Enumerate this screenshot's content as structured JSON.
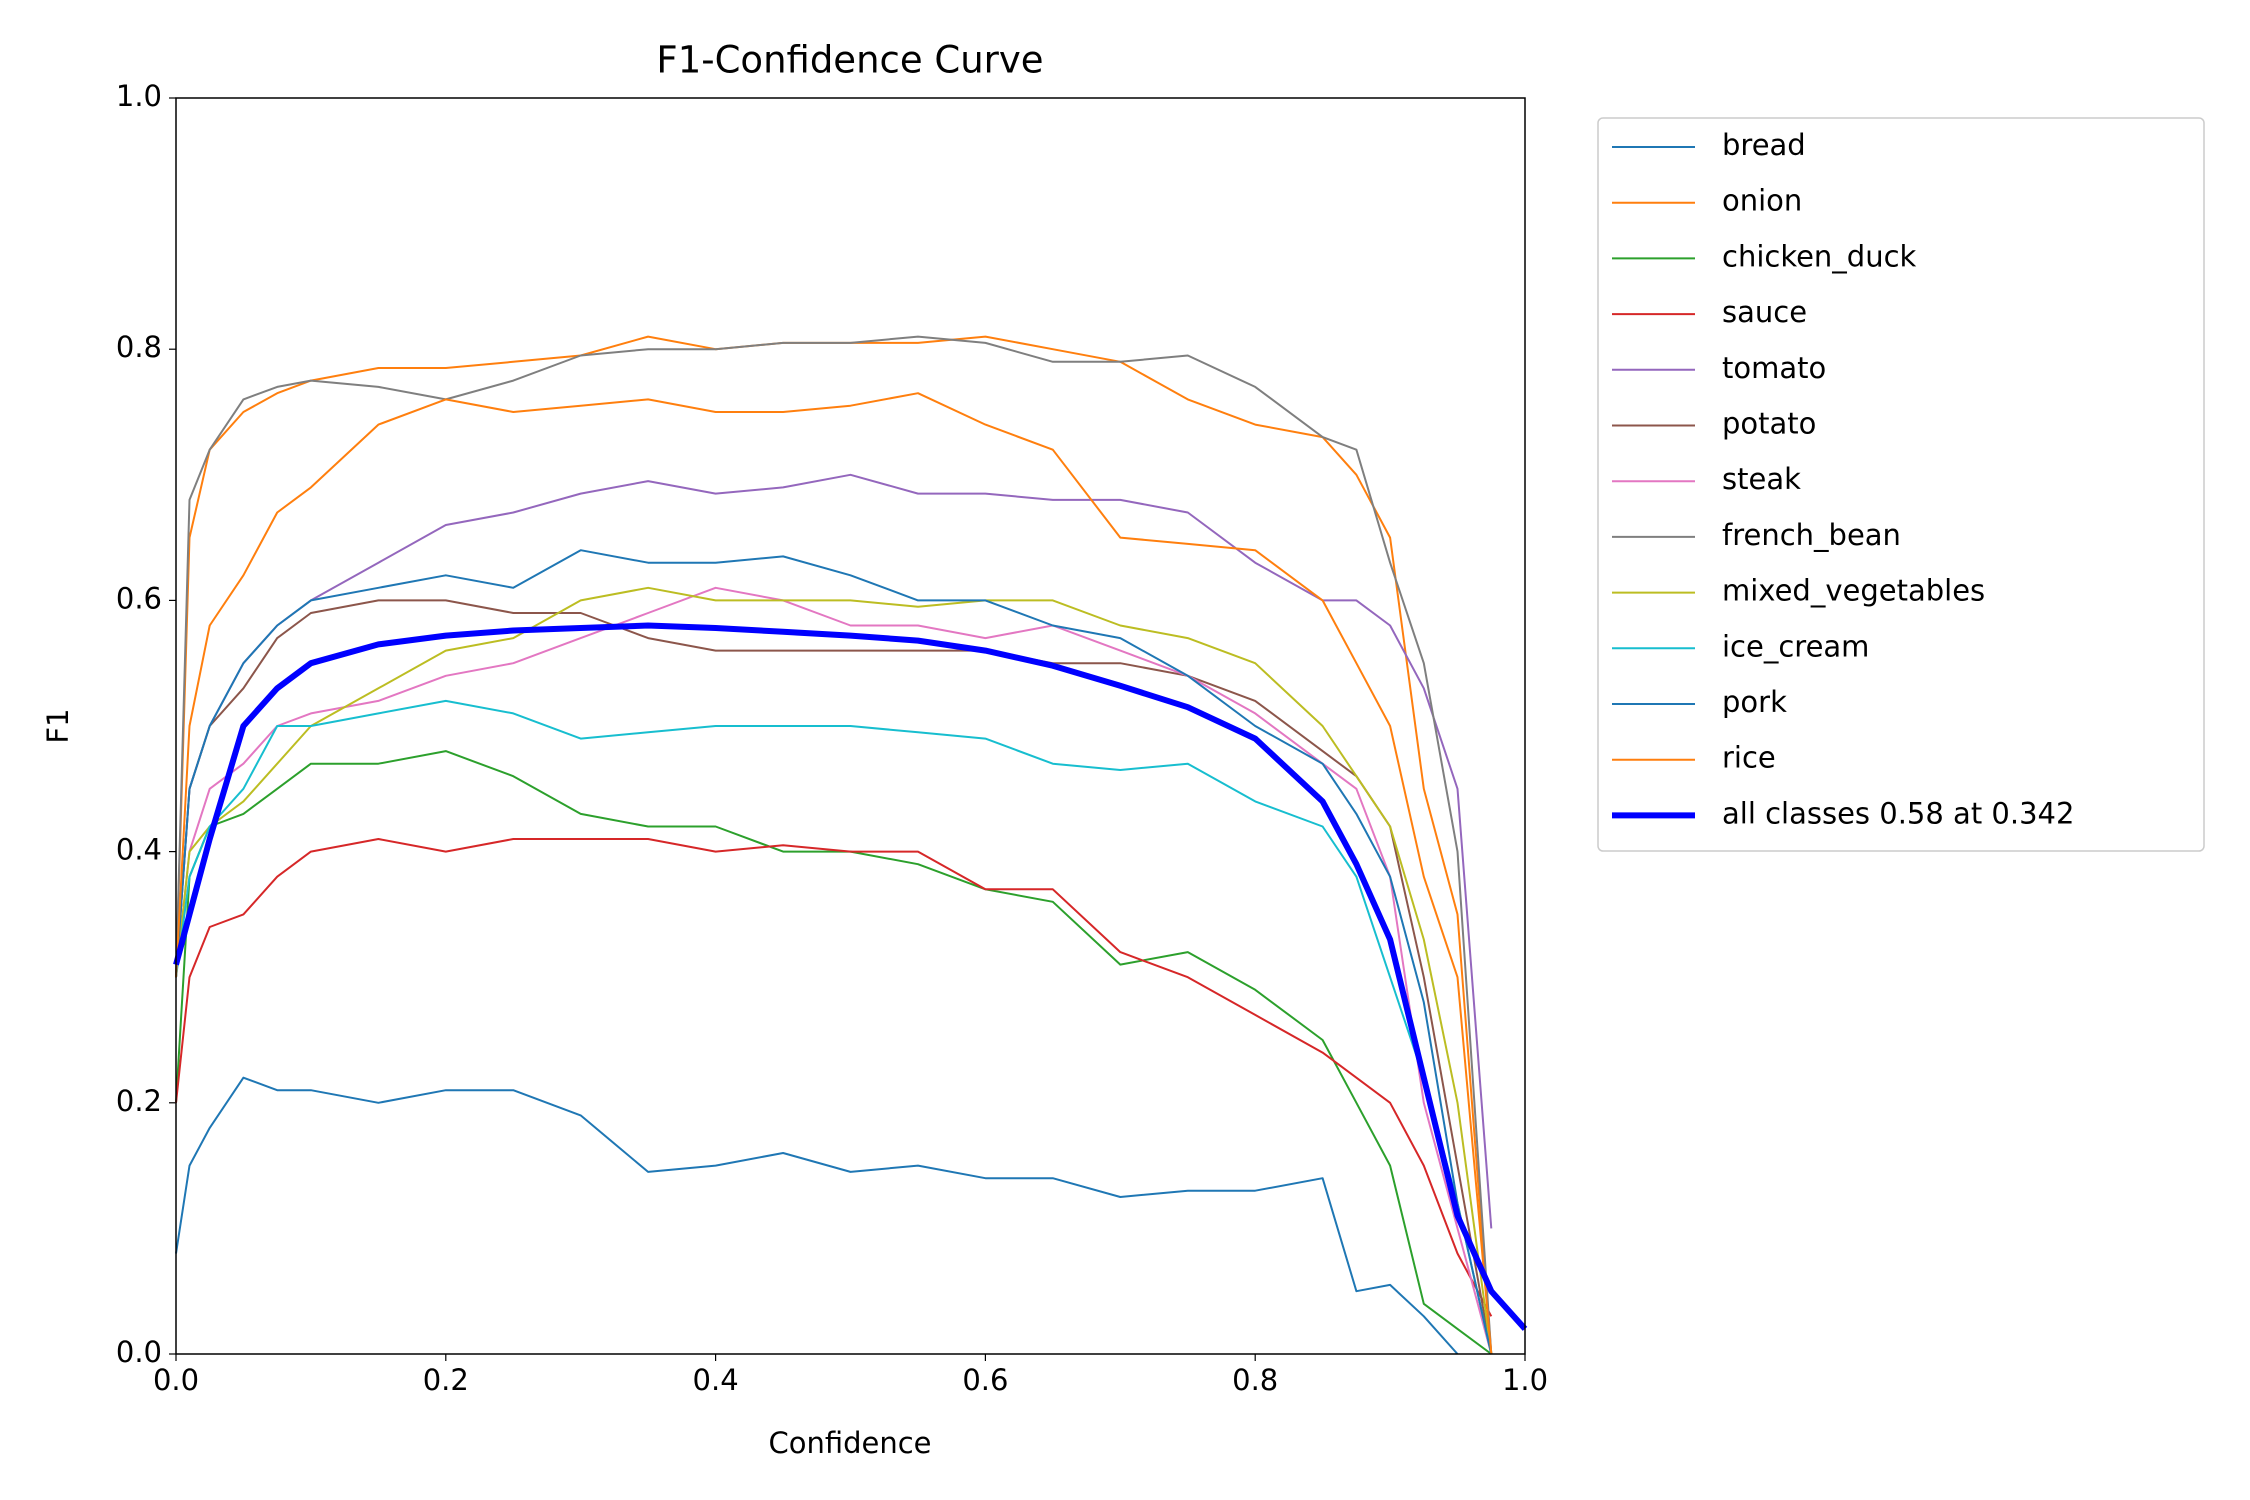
{
  "chart_data": {
    "type": "line",
    "title": "F1-Confidence Curve",
    "x_label": "Confidence",
    "y_label": "F1",
    "x": [
      0,
      0.01,
      0.025,
      0.05,
      0.075,
      0.1,
      0.15,
      0.2,
      0.25,
      0.3,
      0.35,
      0.4,
      0.45,
      0.5,
      0.55,
      0.6,
      0.65,
      0.7,
      0.75,
      0.8,
      0.85,
      0.875,
      0.9,
      0.925,
      0.95,
      0.975,
      1.0
    ],
    "xlim": [
      0,
      1
    ],
    "ylim": [
      0,
      1
    ],
    "xticks": [
      {
        "value": 0,
        "label": "0.0"
      },
      0.2,
      0.4,
      0.6,
      0.8,
      {
        "value": 1,
        "label": "1.0"
      }
    ],
    "yticks": [
      {
        "value": 0,
        "label": "0.0"
      },
      0.2,
      0.4,
      0.6,
      0.8,
      {
        "value": 1,
        "label": "1.0"
      }
    ],
    "legend": "outside-upper-right",
    "series": [
      {
        "name": "bread",
        "color": "#1f77b4",
        "values": [
          0.08,
          0.15,
          0.18,
          0.22,
          0.21,
          0.21,
          0.2,
          0.21,
          0.21,
          0.19,
          0.145,
          0.15,
          0.16,
          0.145,
          0.15,
          0.14,
          0.14,
          0.125,
          0.13,
          0.13,
          0.14,
          0.05,
          0.055,
          0.03,
          0.0,
          null,
          null
        ]
      },
      {
        "name": "onion",
        "color": "#ff7f0e",
        "values": [
          0.3,
          0.65,
          0.72,
          0.75,
          0.765,
          0.775,
          0.785,
          0.785,
          0.79,
          0.795,
          0.81,
          0.8,
          0.805,
          0.805,
          0.805,
          0.81,
          0.8,
          0.79,
          0.76,
          0.74,
          0.73,
          0.7,
          0.65,
          0.45,
          0.35,
          0.0,
          null
        ]
      },
      {
        "name": "chicken_duck",
        "color": "#2ca02c",
        "values": [
          0.2,
          0.38,
          0.42,
          0.43,
          0.45,
          0.47,
          0.47,
          0.48,
          0.46,
          0.43,
          0.42,
          0.42,
          0.4,
          0.4,
          0.39,
          0.37,
          0.36,
          0.31,
          0.32,
          0.29,
          0.25,
          0.2,
          0.15,
          0.04,
          0.02,
          0.0,
          null
        ]
      },
      {
        "name": "sauce",
        "color": "#d62728",
        "values": [
          0.2,
          0.3,
          0.34,
          0.35,
          0.38,
          0.4,
          0.41,
          0.4,
          0.41,
          0.41,
          0.41,
          0.4,
          0.405,
          0.4,
          0.4,
          0.37,
          0.37,
          0.32,
          0.3,
          0.27,
          0.24,
          0.22,
          0.2,
          0.15,
          0.08,
          0.03,
          null
        ]
      },
      {
        "name": "tomato",
        "color": "#9467bd",
        "values": [
          0.3,
          0.45,
          0.5,
          0.55,
          0.58,
          0.6,
          0.63,
          0.66,
          0.67,
          0.685,
          0.695,
          0.685,
          0.69,
          0.7,
          0.685,
          0.685,
          0.68,
          0.68,
          0.67,
          0.63,
          0.6,
          0.6,
          0.58,
          0.53,
          0.45,
          0.1,
          null
        ]
      },
      {
        "name": "potato",
        "color": "#8c564b",
        "values": [
          0.3,
          0.45,
          0.5,
          0.53,
          0.57,
          0.59,
          0.6,
          0.6,
          0.59,
          0.59,
          0.57,
          0.56,
          0.56,
          0.56,
          0.56,
          0.56,
          0.55,
          0.55,
          0.54,
          0.52,
          0.48,
          0.46,
          0.42,
          0.3,
          0.15,
          0.0,
          null
        ]
      },
      {
        "name": "steak",
        "color": "#e377c2",
        "values": [
          0.3,
          0.4,
          0.45,
          0.47,
          0.5,
          0.51,
          0.52,
          0.54,
          0.55,
          0.57,
          0.59,
          0.61,
          0.6,
          0.58,
          0.58,
          0.57,
          0.58,
          0.56,
          0.54,
          0.51,
          0.47,
          0.45,
          0.38,
          0.2,
          0.1,
          0.0,
          null
        ]
      },
      {
        "name": "french_bean",
        "color": "#7f7f7f",
        "values": [
          0.3,
          0.68,
          0.72,
          0.76,
          0.77,
          0.775,
          0.77,
          0.76,
          0.775,
          0.795,
          0.8,
          0.8,
          0.805,
          0.805,
          0.81,
          0.805,
          0.79,
          0.79,
          0.795,
          0.77,
          0.73,
          0.72,
          0.63,
          0.55,
          0.4,
          0.0,
          null
        ]
      },
      {
        "name": "mixed_vegetables",
        "color": "#bcbd22",
        "values": [
          0.3,
          0.4,
          0.42,
          0.44,
          0.47,
          0.5,
          0.53,
          0.56,
          0.57,
          0.6,
          0.61,
          0.6,
          0.6,
          0.6,
          0.595,
          0.6,
          0.6,
          0.58,
          0.57,
          0.55,
          0.5,
          0.46,
          0.42,
          0.33,
          0.2,
          0.0,
          null
        ]
      },
      {
        "name": "ice_cream",
        "color": "#17becf",
        "values": [
          0.3,
          0.38,
          0.42,
          0.45,
          0.5,
          0.5,
          0.51,
          0.52,
          0.51,
          0.49,
          0.495,
          0.5,
          0.5,
          0.5,
          0.495,
          0.49,
          0.47,
          0.465,
          0.47,
          0.44,
          0.42,
          0.38,
          0.3,
          0.22,
          0.12,
          0.0,
          null
        ]
      },
      {
        "name": "pork",
        "color": "#1f77b4",
        "values": [
          0.3,
          0.45,
          0.5,
          0.55,
          0.58,
          0.6,
          0.61,
          0.62,
          0.61,
          0.64,
          0.63,
          0.63,
          0.635,
          0.62,
          0.6,
          0.6,
          0.58,
          0.57,
          0.54,
          0.5,
          0.47,
          0.43,
          0.38,
          0.28,
          0.12,
          0.0,
          null
        ]
      },
      {
        "name": "rice",
        "color": "#ff7f0e",
        "values": [
          0.3,
          0.5,
          0.58,
          0.62,
          0.67,
          0.69,
          0.74,
          0.76,
          0.75,
          0.755,
          0.76,
          0.75,
          0.75,
          0.755,
          0.765,
          0.74,
          0.72,
          0.65,
          0.645,
          0.64,
          0.6,
          0.55,
          0.5,
          0.38,
          0.3,
          0.0,
          null
        ]
      },
      {
        "name": "all classes 0.58 at 0.342",
        "color": "#0000ff",
        "width": 3,
        "values": [
          0.31,
          0.35,
          0.41,
          0.5,
          0.53,
          0.55,
          0.565,
          0.572,
          0.576,
          0.578,
          0.58,
          0.578,
          0.575,
          0.572,
          0.568,
          0.56,
          0.548,
          0.532,
          0.515,
          0.49,
          0.44,
          0.39,
          0.33,
          0.22,
          0.11,
          0.05,
          0.02
        ]
      }
    ]
  }
}
